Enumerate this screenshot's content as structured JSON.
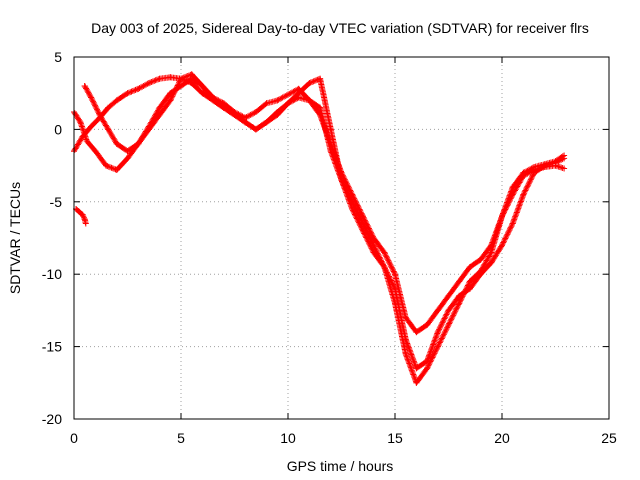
{
  "chart_data": {
    "type": "scatter",
    "title": "Day 003 of 2025, Sidereal Day-to-day VTEC variation (SDTVAR) for receiver flrs",
    "xlabel": "GPS time / hours",
    "ylabel": "SDTVAR / TECUs",
    "xlim": [
      0,
      25
    ],
    "ylim": [
      -20,
      5
    ],
    "x_ticks": [
      0,
      5,
      10,
      15,
      20,
      25
    ],
    "y_ticks": [
      -20,
      -15,
      -10,
      -5,
      0,
      5
    ],
    "x_tick_labels": [
      "0",
      "5",
      "10",
      "15",
      "20",
      "25"
    ],
    "y_tick_labels": [
      "-20",
      "-15",
      "-10",
      "-5",
      "0",
      "5"
    ],
    "grid": true,
    "marker": "+",
    "color": "#ff0000",
    "series": [
      {
        "x": [
          0.0,
          0.3,
          0.6,
          1.0,
          1.5,
          2.0,
          2.5,
          3.0,
          3.5,
          4.0,
          4.5,
          5.0,
          5.5,
          6.0,
          6.5,
          7.0,
          7.5,
          8.0,
          8.5,
          9.0,
          9.5,
          10.0,
          10.5,
          11.0,
          11.5,
          12.0,
          12.5,
          13.0,
          13.5,
          14.0,
          14.5,
          15.0,
          15.5,
          16.0,
          16.5,
          17.0,
          17.5,
          18.0,
          18.5,
          19.0,
          19.5,
          20.0,
          20.5,
          21.0,
          21.5,
          22.0,
          22.5,
          22.9
        ],
        "y": [
          1.2,
          0.5,
          -0.8,
          -1.5,
          -2.5,
          -2.8,
          -2.0,
          -1.0,
          0.2,
          1.5,
          2.5,
          3.0,
          3.5,
          3.0,
          2.2,
          1.8,
          1.2,
          0.8,
          1.2,
          1.8,
          2.0,
          2.4,
          2.8,
          2.0,
          1.0,
          -1.0,
          -3.0,
          -4.5,
          -6.0,
          -7.5,
          -8.5,
          -10.0,
          -13.0,
          -14.0,
          -13.5,
          -12.5,
          -11.5,
          -10.5,
          -9.5,
          -9.0,
          -8.0,
          -6.0,
          -4.0,
          -3.0,
          -2.6,
          -2.4,
          -2.2,
          -1.8
        ]
      },
      {
        "x": [
          0.5,
          0.8,
          1.2,
          1.6,
          2.0,
          2.5,
          3.0,
          3.5,
          4.0,
          4.5,
          5.0,
          5.5,
          6.0,
          6.5,
          7.0,
          7.5,
          8.0,
          8.5,
          9.0,
          9.5,
          10.0,
          10.5,
          11.0,
          11.5,
          12.0,
          12.5,
          13.0,
          13.5,
          14.0,
          14.5,
          15.0,
          15.5,
          16.0,
          16.5,
          17.0,
          17.5,
          18.0,
          18.5,
          19.0,
          19.5,
          20.0,
          20.5,
          21.0,
          21.5,
          22.0,
          22.5,
          22.9
        ],
        "y": [
          3.0,
          2.2,
          1.0,
          0.0,
          -1.0,
          -1.5,
          -1.0,
          0.0,
          1.0,
          2.0,
          3.5,
          3.8,
          3.0,
          2.0,
          1.5,
          1.0,
          0.5,
          0.0,
          0.5,
          1.2,
          1.8,
          2.5,
          3.2,
          3.5,
          0.0,
          -3.5,
          -5.0,
          -6.5,
          -8.0,
          -9.5,
          -11.0,
          -14.5,
          -16.5,
          -16.0,
          -14.0,
          -12.5,
          -11.5,
          -11.0,
          -10.0,
          -9.2,
          -8.0,
          -6.5,
          -4.5,
          -3.0,
          -2.5,
          -2.3,
          -2.0
        ]
      },
      {
        "x": [
          0.0,
          0.4,
          0.8,
          1.2,
          1.6,
          2.0,
          2.5,
          3.0,
          3.5,
          4.0,
          4.5,
          5.0,
          5.5,
          6.0,
          6.5,
          7.0,
          7.5,
          8.0,
          8.5,
          9.0,
          9.5,
          10.0,
          10.5,
          11.0,
          11.5,
          12.0,
          12.5,
          13.0,
          13.5,
          14.0,
          14.5,
          15.0,
          15.5,
          16.0,
          16.5,
          17.0,
          17.5,
          18.0,
          18.5,
          19.0,
          19.5,
          20.0,
          20.5,
          21.0,
          21.5,
          22.0,
          22.5,
          22.9
        ],
        "y": [
          -1.5,
          -0.5,
          0.2,
          0.8,
          1.5,
          2.0,
          2.5,
          2.8,
          3.2,
          3.5,
          3.6,
          3.5,
          3.2,
          2.5,
          2.0,
          1.5,
          1.0,
          0.5,
          0.0,
          0.5,
          1.0,
          1.8,
          2.2,
          2.0,
          1.5,
          -1.5,
          -3.5,
          -5.5,
          -7.0,
          -8.5,
          -9.5,
          -12.0,
          -15.5,
          -17.5,
          -16.5,
          -15.0,
          -13.5,
          -12.0,
          -10.5,
          -9.8,
          -8.5,
          -6.0,
          -4.5,
          -3.2,
          -2.8,
          -2.6,
          -2.5,
          -2.7
        ]
      },
      {
        "x": [
          0.1,
          0.25,
          0.4,
          0.5,
          0.55
        ],
        "y": [
          -5.5,
          -5.7,
          -5.9,
          -6.2,
          -6.5
        ]
      }
    ]
  }
}
